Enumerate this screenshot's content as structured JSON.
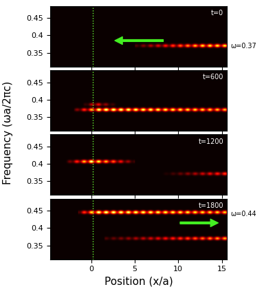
{
  "chart_data": {
    "type": "heatmap",
    "x_label": "Position (x/a)",
    "y_label": "Frequency (ωa/2πc)",
    "xlim": [
      -4.7,
      15.6
    ],
    "ylim": [
      0.31,
      0.485
    ],
    "xticks": [
      0,
      5,
      10,
      15
    ],
    "yticks": [
      0.35,
      0.4,
      0.45
    ],
    "marker_line_x": 0.2,
    "intensity_range": [
      0,
      1
    ],
    "panels": [
      {
        "label": "t=0",
        "bands": [
          {
            "frequency": 0.37,
            "x_start": 5.0,
            "x_peak": 13.0,
            "x_end": 15.6,
            "intensity": [
              0.1,
              0.8,
              0.8
            ]
          }
        ],
        "annotations": [
          {
            "text": "ω=0.37",
            "frequency": 0.37
          }
        ]
      },
      {
        "label": "t=600",
        "bands": [
          {
            "frequency": 0.37,
            "x_start": -2.0,
            "x_peak": 1.0,
            "x_end": 15.6,
            "intensity": [
              0.1,
              1.0,
              0.7
            ]
          },
          {
            "frequency": 0.385,
            "x_start": -1.0,
            "x_peak": 0.5,
            "x_end": 3.0,
            "intensity": [
              0.0,
              0.4,
              0.0
            ]
          }
        ],
        "annotations": []
      },
      {
        "label": "t=1200",
        "bands": [
          {
            "frequency": 0.405,
            "x_start": -3.0,
            "x_peak": 0.0,
            "x_end": 5.0,
            "intensity": [
              0.0,
              1.0,
              0.1
            ]
          },
          {
            "frequency": 0.37,
            "x_start": 8.0,
            "x_peak": 15.6,
            "x_end": 15.6,
            "intensity": [
              0.0,
              0.5,
              0.5
            ]
          }
        ],
        "annotations": []
      },
      {
        "label": "t=1800",
        "bands": [
          {
            "frequency": 0.445,
            "x_start": -1.5,
            "x_peak": 0.5,
            "x_end": 15.6,
            "intensity": [
              0.2,
              1.0,
              0.75
            ]
          },
          {
            "frequency": 0.37,
            "x_start": 1.5,
            "x_peak": 15.6,
            "x_end": 15.6,
            "intensity": [
              0.1,
              0.7,
              0.7
            ]
          }
        ],
        "annotations": [
          {
            "text": "ω=0.44",
            "frequency": 0.44
          }
        ]
      }
    ]
  }
}
